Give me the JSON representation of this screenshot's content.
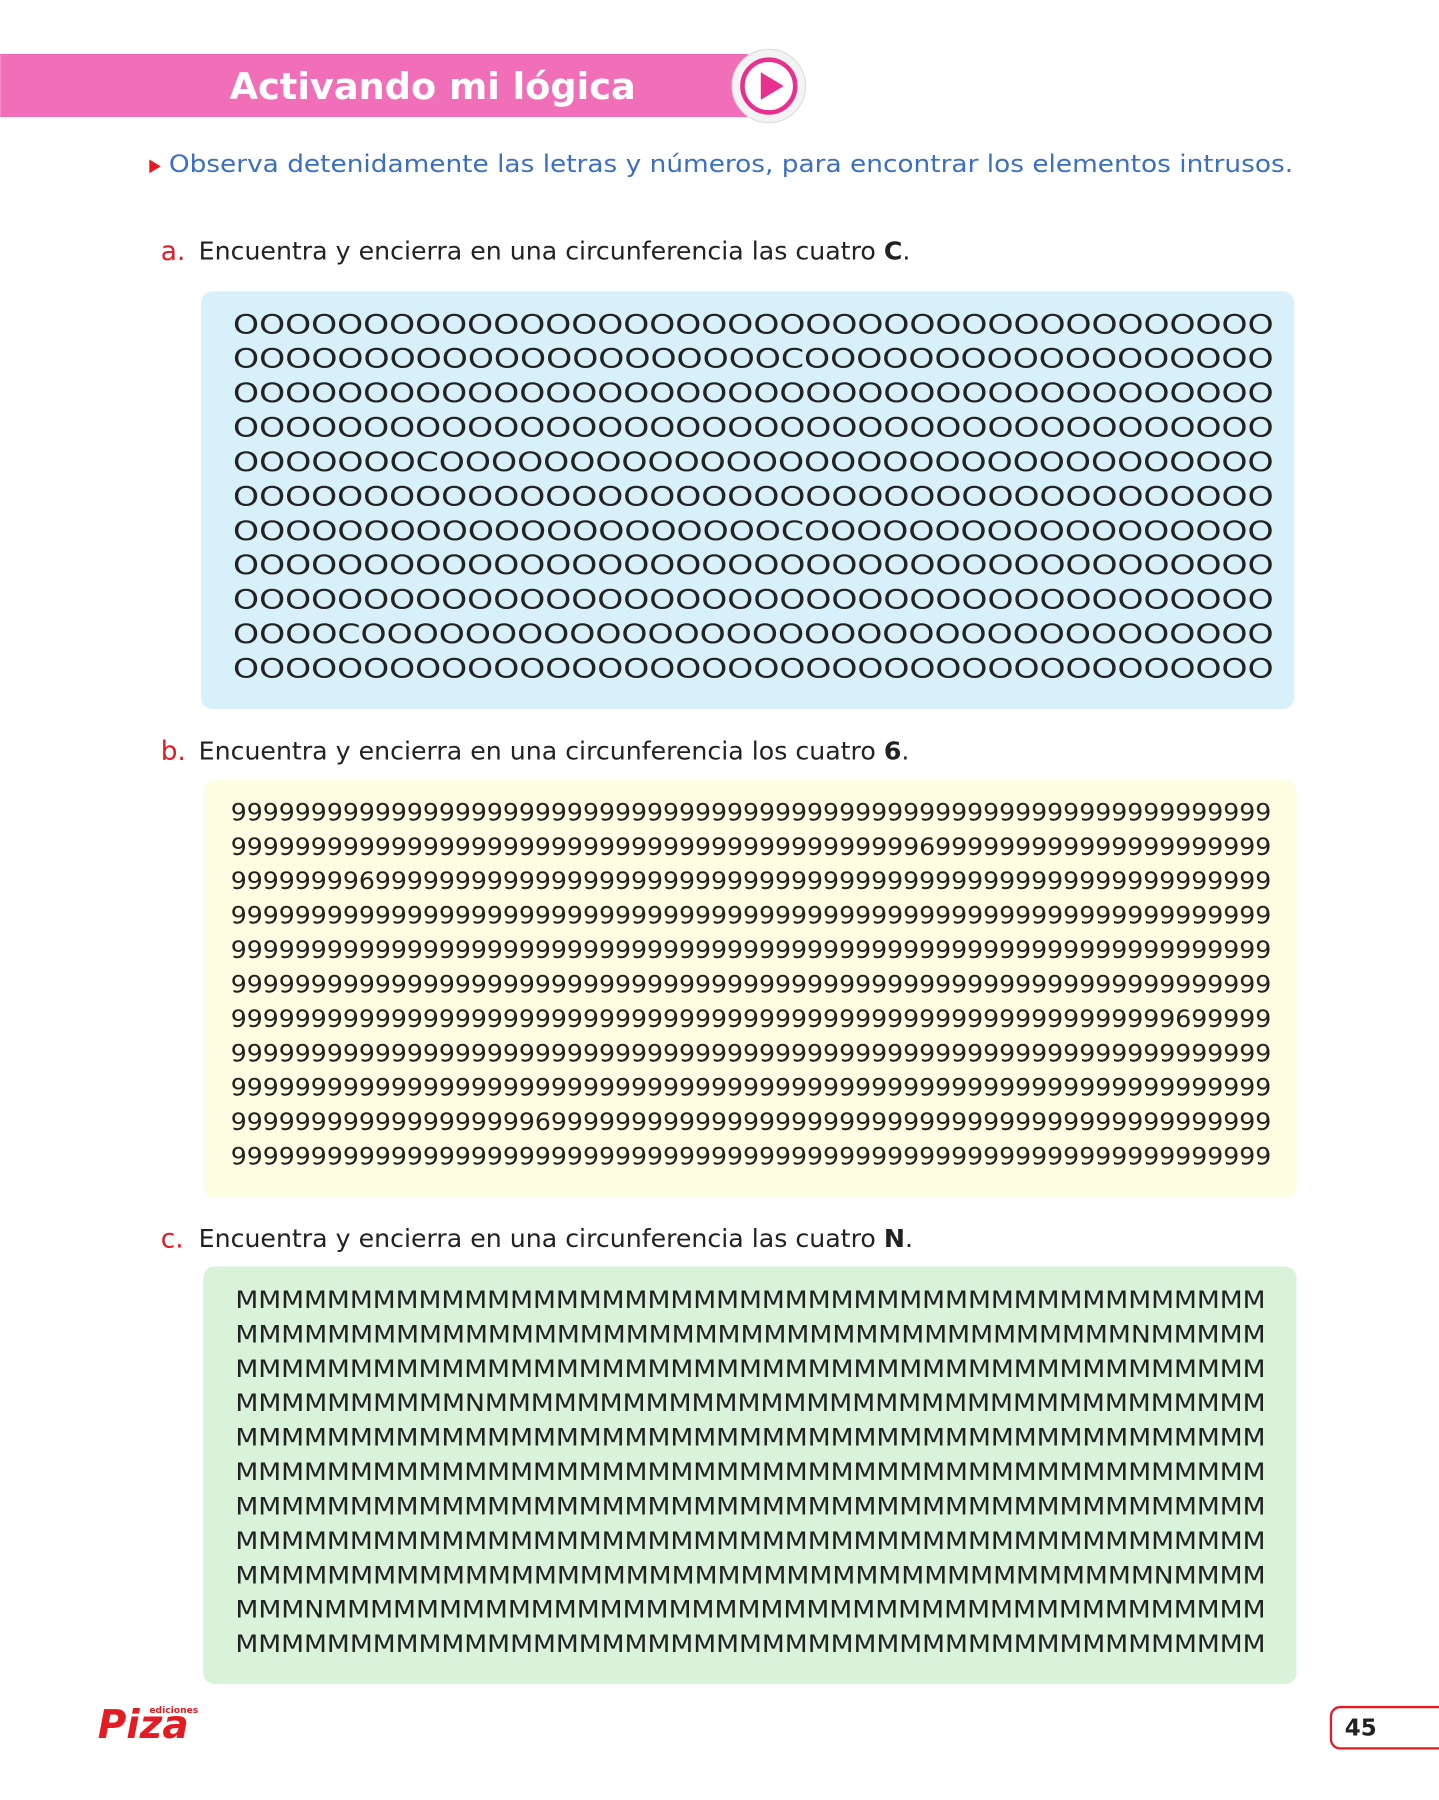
{
  "header": {
    "title": "Activando mi lógica"
  },
  "instruction": "Observa detenidamente las letras y números, para encontrar los elementos intrusos.",
  "sections": [
    {
      "label": "a.",
      "prompt": "Encuentra y encierra en una circunferencia las cuatro",
      "target": "C",
      "punct": ".",
      "rows": [
        "OOOOOOOOOOOOOOOOOOOOOOOOOOOOOOOOOOOOOOOO",
        "OOOOOOOOOOOOOOOOOOOOOCOOOOOOOOOOOOOOOOOO",
        "OOOOOOOOOOOOOOOOOOOOOOOOOOOOOOOOOOOOOOOO",
        "OOOOOOOOOOOOOOOOOOOOOOOOOOOOOOOOOOOOOOOO",
        "OOOOOOOCOOOOOOOOOOOOOOOOOOOOOOOOOOOOOOOO",
        "OOOOOOOOOOOOOOOOOOOOOOOOOOOOOOOOOOOOOOOO",
        "OOOOOOOOOOOOOOOOOOOOOCOOOOOOOOOOOOOOOOOO",
        "OOOOOOOOOOOOOOOOOOOOOOOOOOOOOOOOOOOOOOOO",
        "OOOOOOOOOOOOOOOOOOOOOOOOOOOOOOOOOOOOOOOO",
        "OOOOCOOOOOOOOOOOOOOOOOOOOOOOOOOOOOOOOOOO",
        "OOOOOOOOOOOOOOOOOOOOOOOOOOOOOOOOOOOOOOOO"
      ]
    },
    {
      "label": "b.",
      "prompt": "Encuentra y encierra en una circunferencia los cuatro",
      "target": "6",
      "punct": ".",
      "rows": [
        "99999999999999999999999999999999999999999999999999999999999999999",
        "99999999999999999999999999999999999999999996999999999999999999999",
        "99999999699999999999999999999999999999999999999999999999999999999",
        "99999999999999999999999999999999999999999999999999999999999999999",
        "99999999999999999999999999999999999999999999999999999999999999999",
        "99999999999999999999999999999999999999999999999999999999999999999",
        "99999999999999999999999999999999999999999999999999999999999699999",
        "99999999999999999999999999999999999999999999999999999999999999999",
        "99999999999999999999999999999999999999999999999999999999999999999",
        "99999999999999999996999999999999999999999999999999999999999999999",
        "99999999999999999999999999999999999999999999999999999999999999999"
      ]
    },
    {
      "label": "c.",
      "prompt": "Encuentra y encierra en una circunferencia las cuatro",
      "target": "N",
      "punct": ".",
      "rows": [
        "MMMMMMMMMMMMMMMMMMMMMMMMMMMMMMMMMMMMMMMMMMMMM",
        "MMMMMMMMMMMMMMMMMMMMMMMMMMMMMMMMMMMMMMMNMMMMM",
        "MMMMMMMMMMMMMMMMMMMMMMMMMMMMMMMMMMMMMMMMMMMMM",
        "MMMMMMMMMMNMMMMMMMMMMMMMMMMMMMMMMMMMMMMMMMMMM",
        "MMMMMMMMMMMMMMMMMMMMMMMMMMMMMMMMMMMMMMMMMMMMM",
        "MMMMMMMMMMMMMMMMMMMMMMMMMMMMMMMMMMMMMMMMMMMMM",
        "MMMMMMMMMMMMMMMMMMMMMMMMMMMMMMMMMMMMMMMMMMMMM",
        "MMMMMMMMMMMMMMMMMMMMMMMMMMMMMMMMMMMMMMMMMMMMM",
        "MMMMMMMMMMMMMMMMMMMMMMMMMMMMMMMMMMMMMMMMNMMMM",
        "MMMNMMMMMMMMMMMMMMMMMMMMMMMMMMMMMMMMMMMMMMMMM",
        "MMMMMMMMMMMMMMMMMMMMMMMMMMMMMMMMMMMMMMMMMMMMM"
      ]
    }
  ],
  "footer": {
    "brand": "Piza",
    "brand_sub": "ediciones",
    "page": "45"
  }
}
